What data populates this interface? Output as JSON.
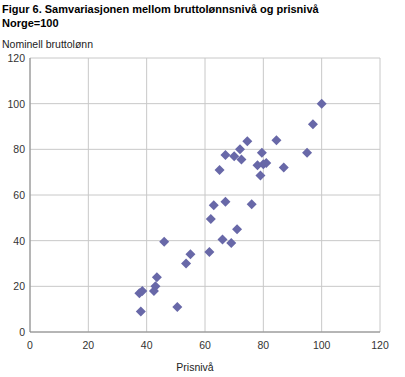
{
  "chart_data": {
    "type": "scatter",
    "title": "Figur 6. Samvariasjonen mellom bruttolønnsnivå og prisnivå",
    "subtitle": "Norge=100",
    "x_label": "Prisnivå",
    "y_label": "Nominell bruttolønn",
    "x": [
      37.5,
      38.5,
      38,
      42.5,
      43,
      43.5,
      46,
      50.5,
      53.5,
      55,
      61.5,
      62,
      63,
      65,
      66,
      67,
      67,
      69,
      70,
      71,
      72,
      72.5,
      74.5,
      76,
      78,
      79,
      79.5,
      80,
      81,
      84.5,
      87,
      95,
      97,
      100
    ],
    "values": [
      17,
      18,
      9,
      18,
      20,
      24,
      39.5,
      11,
      30,
      34,
      35,
      49.5,
      55.5,
      71,
      40.5,
      57,
      77.5,
      39,
      77,
      45,
      80,
      75.5,
      83.5,
      56,
      73,
      68.5,
      78.5,
      73.5,
      74,
      84,
      72,
      78.5,
      91,
      100
    ],
    "color": "#6868a8",
    "marker": "diamond",
    "xlim": [
      0,
      120
    ],
    "xticks": [
      0,
      20,
      40,
      60,
      80,
      100,
      120
    ],
    "ylim": [
      0,
      120
    ],
    "yticks": [
      0,
      20,
      40,
      60,
      80,
      100,
      120
    ],
    "grid": true
  }
}
